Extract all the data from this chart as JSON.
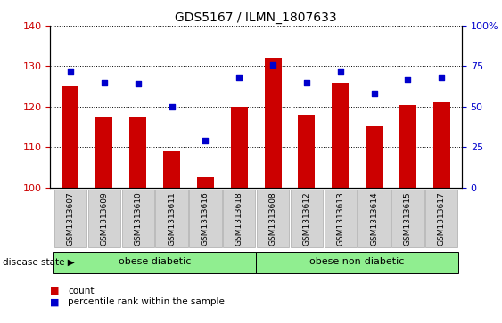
{
  "title": "GDS5167 / ILMN_1807633",
  "samples": [
    "GSM1313607",
    "GSM1313609",
    "GSM1313610",
    "GSM1313611",
    "GSM1313616",
    "GSM1313618",
    "GSM1313608",
    "GSM1313612",
    "GSM1313613",
    "GSM1313614",
    "GSM1313615",
    "GSM1313617"
  ],
  "bar_values": [
    125,
    117.5,
    117.5,
    109,
    102.5,
    120,
    132,
    118,
    126,
    115,
    120.5,
    121
  ],
  "percentile_values": [
    72,
    65,
    64,
    50,
    29,
    68,
    76,
    65,
    72,
    58,
    67,
    68
  ],
  "ylim_left": [
    100,
    140
  ],
  "ylim_right": [
    0,
    100
  ],
  "yticks_left": [
    100,
    110,
    120,
    130,
    140
  ],
  "yticks_right": [
    0,
    25,
    50,
    75,
    100
  ],
  "ytick_labels_right": [
    "0",
    "25",
    "50",
    "75",
    "100%"
  ],
  "bar_color": "#cc0000",
  "dot_color": "#0000cc",
  "group1_label": "obese diabetic",
  "group2_label": "obese non-diabetic",
  "group1_count": 6,
  "group2_count": 6,
  "group_label_prefix": "disease state",
  "group_bg_color": "#90ee90",
  "xticklabel_bg": "#d3d3d3",
  "legend_count_label": "count",
  "legend_pct_label": "percentile rank within the sample",
  "background_color": "#ffffff",
  "grid_color": "#000000"
}
